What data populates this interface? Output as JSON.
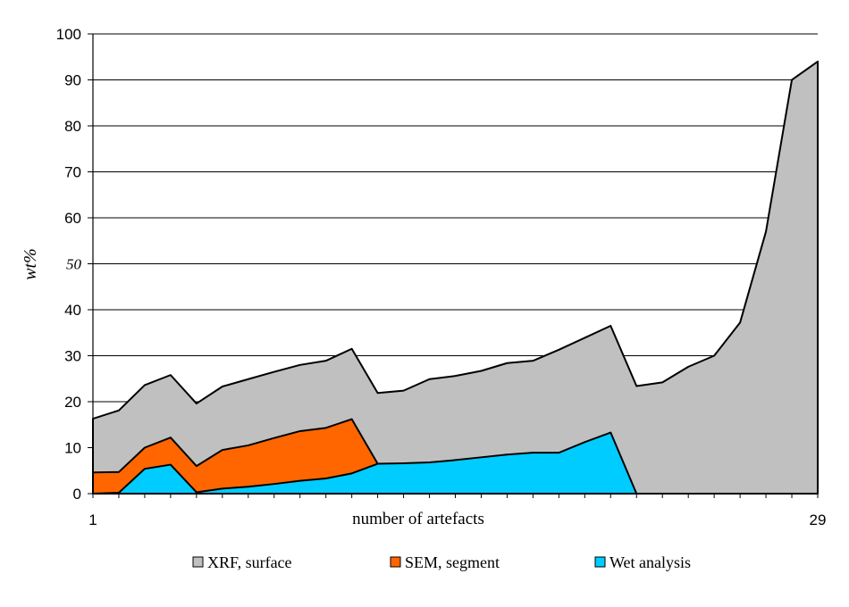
{
  "chart_data": {
    "type": "area",
    "stacking": "overlay",
    "title": "",
    "xlabel": "number of artefacts",
    "ylabel": "wt%",
    "x": [
      1,
      2,
      3,
      4,
      5,
      6,
      7,
      8,
      9,
      10,
      11,
      12,
      13,
      14,
      15,
      16,
      17,
      18,
      19,
      20,
      21,
      22,
      23,
      24,
      25,
      26,
      27,
      28,
      29
    ],
    "xlim": [
      1,
      29
    ],
    "x_tick_labels": [
      "1",
      "29"
    ],
    "ylim": [
      0,
      100
    ],
    "y_ticks": [
      0,
      10,
      20,
      30,
      40,
      50,
      60,
      70,
      80,
      90,
      100
    ],
    "grid": "horizontal",
    "legend_position": "bottom",
    "series": [
      {
        "name": "XRF, surface",
        "color": "#c0c0c0",
        "values": [
          16.3,
          18.1,
          23.6,
          25.8,
          19.6,
          23.3,
          24.9,
          26.5,
          28.0,
          28.9,
          31.5,
          21.9,
          22.4,
          24.9,
          25.6,
          26.7,
          28.4,
          28.9,
          31.3,
          33.9,
          36.5,
          23.4,
          24.2,
          27.6,
          30.0,
          37.2,
          57.0,
          90.0,
          94.0
        ]
      },
      {
        "name": "SEM, segment",
        "color": "#ff6600",
        "values": [
          4.6,
          4.7,
          10.0,
          12.2,
          6.0,
          9.5,
          10.5,
          12.1,
          13.6,
          14.3,
          16.2,
          6.5,
          null,
          null,
          null,
          null,
          null,
          null,
          null,
          null,
          null,
          null,
          null,
          null,
          null,
          null,
          null,
          null,
          null
        ]
      },
      {
        "name": "Wet analysis",
        "color": "#00ccff",
        "values": [
          0,
          0.2,
          5.4,
          6.3,
          0.3,
          1.1,
          1.5,
          2.1,
          2.8,
          3.3,
          4.4,
          6.5,
          6.6,
          6.8,
          7.3,
          7.9,
          8.5,
          8.9,
          8.9,
          11.2,
          13.3,
          0,
          null,
          null,
          null,
          null,
          null,
          null,
          null
        ]
      }
    ]
  }
}
